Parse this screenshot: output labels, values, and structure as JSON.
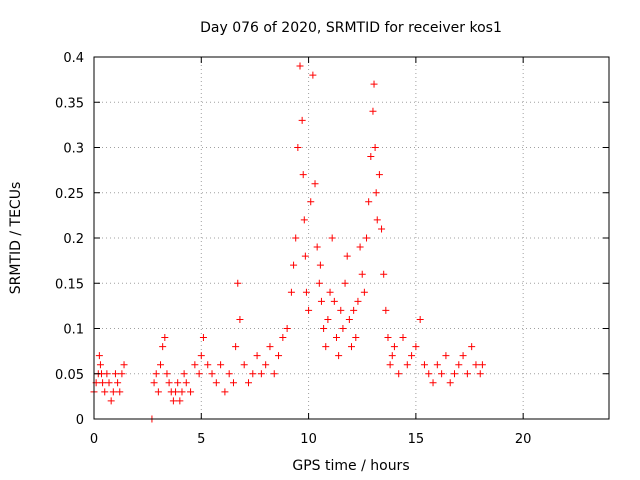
{
  "chart_data": {
    "type": "scatter",
    "title": "Day 076 of 2020, SRMTID for receiver kos1",
    "xlabel": "GPS time / hours",
    "ylabel": "SRMTID / TECUs",
    "xlim": [
      0,
      24
    ],
    "ylim": [
      0,
      0.4
    ],
    "xticks": [
      0,
      5,
      10,
      15,
      20
    ],
    "xtick_labels": [
      "0",
      "5",
      "10",
      "15",
      "20"
    ],
    "yticks": [
      0,
      0.05,
      0.1,
      0.15,
      0.2,
      0.25,
      0.3,
      0.35,
      0.4
    ],
    "ytick_labels": [
      "0",
      "0.05",
      "0.1",
      "0.15",
      "0.2",
      "0.25",
      "0.3",
      "0.35",
      "0.4"
    ],
    "grid": true,
    "marker": "+",
    "color": "#ff0000",
    "series": [
      {
        "name": "kos1",
        "x": [
          0.0,
          0.1,
          0.2,
          0.25,
          0.3,
          0.35,
          0.4,
          0.5,
          0.6,
          0.7,
          0.8,
          0.9,
          1.0,
          1.1,
          1.2,
          1.3,
          1.4,
          2.7,
          2.8,
          2.9,
          3.0,
          3.1,
          3.2,
          3.3,
          3.4,
          3.5,
          3.6,
          3.7,
          3.8,
          3.9,
          4.0,
          4.1,
          4.2,
          4.3,
          4.5,
          4.7,
          4.9,
          5.0,
          5.1,
          5.3,
          5.5,
          5.7,
          5.9,
          6.1,
          6.3,
          6.5,
          6.6,
          6.7,
          6.8,
          7.0,
          7.2,
          7.4,
          7.6,
          7.8,
          8.0,
          8.2,
          8.4,
          8.6,
          8.8,
          9.0,
          9.2,
          9.3,
          9.4,
          9.5,
          9.6,
          9.7,
          9.75,
          9.8,
          9.85,
          9.9,
          10.0,
          10.1,
          10.2,
          10.3,
          10.4,
          10.5,
          10.55,
          10.6,
          10.7,
          10.8,
          10.9,
          11.0,
          11.1,
          11.2,
          11.3,
          11.4,
          11.5,
          11.6,
          11.7,
          11.8,
          11.9,
          12.0,
          12.1,
          12.2,
          12.3,
          12.4,
          12.5,
          12.6,
          12.7,
          12.8,
          12.9,
          13.0,
          13.05,
          13.1,
          13.15,
          13.2,
          13.3,
          13.4,
          13.5,
          13.6,
          13.7,
          13.8,
          13.9,
          14.0,
          14.2,
          14.4,
          14.6,
          14.8,
          15.0,
          15.2,
          15.4,
          15.6,
          15.8,
          16.0,
          16.2,
          16.4,
          16.6,
          16.8,
          17.0,
          17.2,
          17.4,
          17.6,
          17.8,
          18.0,
          18.1
        ],
        "y": [
          0.03,
          0.04,
          0.05,
          0.07,
          0.06,
          0.05,
          0.04,
          0.03,
          0.05,
          0.04,
          0.02,
          0.03,
          0.05,
          0.04,
          0.03,
          0.05,
          0.06,
          0.0,
          0.04,
          0.05,
          0.03,
          0.06,
          0.08,
          0.09,
          0.05,
          0.04,
          0.03,
          0.02,
          0.03,
          0.04,
          0.02,
          0.03,
          0.05,
          0.04,
          0.03,
          0.06,
          0.05,
          0.07,
          0.09,
          0.06,
          0.05,
          0.04,
          0.06,
          0.03,
          0.05,
          0.04,
          0.08,
          0.15,
          0.11,
          0.06,
          0.04,
          0.05,
          0.07,
          0.05,
          0.06,
          0.08,
          0.05,
          0.07,
          0.09,
          0.1,
          0.14,
          0.17,
          0.2,
          0.3,
          0.39,
          0.33,
          0.27,
          0.22,
          0.18,
          0.14,
          0.12,
          0.24,
          0.38,
          0.26,
          0.19,
          0.15,
          0.17,
          0.13,
          0.1,
          0.08,
          0.11,
          0.14,
          0.2,
          0.13,
          0.09,
          0.07,
          0.12,
          0.1,
          0.15,
          0.18,
          0.11,
          0.08,
          0.12,
          0.09,
          0.13,
          0.19,
          0.16,
          0.14,
          0.2,
          0.24,
          0.29,
          0.34,
          0.37,
          0.3,
          0.25,
          0.22,
          0.27,
          0.21,
          0.16,
          0.12,
          0.09,
          0.06,
          0.07,
          0.08,
          0.05,
          0.09,
          0.06,
          0.07,
          0.08,
          0.11,
          0.06,
          0.05,
          0.04,
          0.06,
          0.05,
          0.07,
          0.04,
          0.05,
          0.06,
          0.07,
          0.05,
          0.08,
          0.06,
          0.05,
          0.06
        ]
      }
    ]
  }
}
